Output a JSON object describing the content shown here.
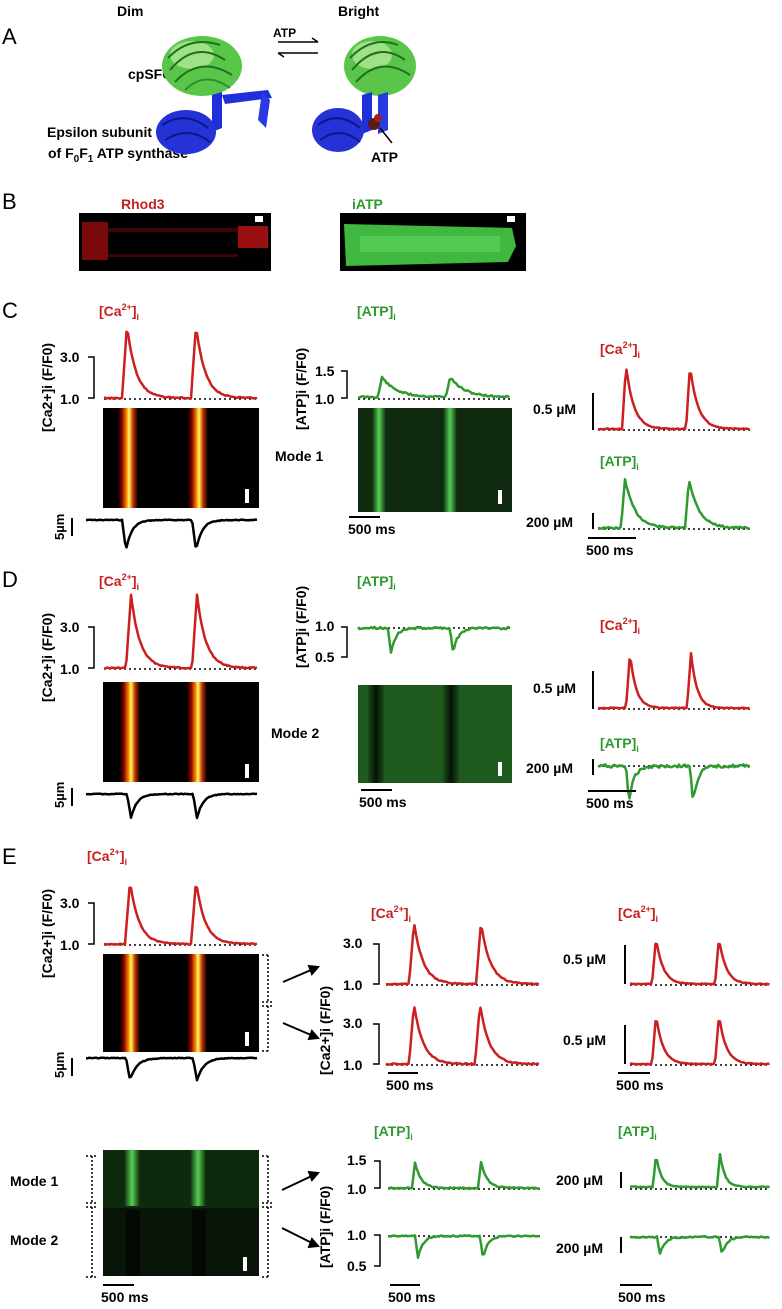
{
  "colors": {
    "ca": "#cc1f1f",
    "atp": "#2f9a2f",
    "cell": "#000000",
    "sfgfp": "#58c648",
    "epsilon": "#1f2fd9",
    "atp_molecule": "#5a1a1a"
  },
  "panels": {
    "A": {
      "letter": "A",
      "dim_label": "Dim",
      "bright_label": "Bright",
      "atp_arrow_label": "ATP",
      "cpsfgfp_label": "cpSFGFP",
      "epsilon_line1": "Epsilon subunit",
      "epsilon_line2_prefix": "of F",
      "epsilon_sub0": "0",
      "epsilon_mid": "F",
      "epsilon_sub1": "1",
      "epsilon_suffix": " ATP synthase",
      "atp_bound_label": "ATP"
    },
    "B": {
      "letter": "B",
      "rhod3_label": "Rhod3",
      "iatp_label": "iATP"
    },
    "C": {
      "letter": "C",
      "ca_title": "[Ca",
      "ca_sup": "2+",
      "ca_close": "]",
      "ca_sub": "i",
      "atp_title": "[ATP]",
      "atp_sub": "i",
      "ca_axis": "[Ca2+]i (F/F0)",
      "atp_axis": "[ATP]i (F/F0)",
      "ca_ticks": [
        "3.0",
        "1.0"
      ],
      "atp_ticks": [
        "1.5",
        "1.0"
      ],
      "mode": "Mode 1",
      "scale_5um": "5µm",
      "scale_ms": "500 ms",
      "cal_ca": "0.5 µM",
      "cal_atp": "200 µM"
    },
    "D": {
      "letter": "D",
      "atp_ticks": [
        "1.0",
        "0.5"
      ],
      "ca_ticks": [
        "3.0",
        "1.0"
      ],
      "mode": "Mode 2",
      "scale_5um": "5µm",
      "scale_ms": "500 ms",
      "cal_ca": "0.5 µM",
      "cal_atp": "200 µM"
    },
    "E": {
      "letter": "E",
      "ca_ticks": [
        "3.0",
        "1.0"
      ],
      "atp_ticks_up": [
        "1.5",
        "1.0"
      ],
      "atp_ticks_down": [
        "1.0",
        "0.5"
      ],
      "mode1": "Mode 1",
      "mode2": "Mode 2",
      "scale_5um": "5µm",
      "scale_ms": "500 ms",
      "cal_ca": "0.5 µM",
      "cal_atp": "200 µM"
    }
  }
}
